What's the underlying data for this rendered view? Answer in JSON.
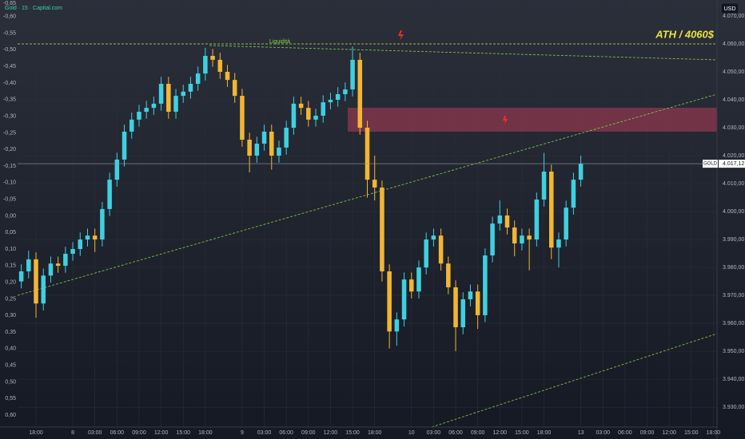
{
  "chart_data": {
    "type": "candlestick",
    "title": "Gold · 15 · Capital.com",
    "currency": "USD",
    "annotations": [
      "ATH / 4060$",
      "Liquidità"
    ],
    "up_color": "#3fd0e0",
    "down_color": "#f2b632",
    "grid": true,
    "last_price": {
      "value": 4017.12,
      "label": "4.017,12"
    },
    "symbol_tag": "GOLD",
    "x": [
      0.5,
      1.5,
      2.5,
      3.5,
      4.5,
      5.5,
      6.5,
      7.5,
      8.5,
      9.5,
      10.5,
      11.5,
      12.5,
      13.5,
      14.5,
      15.5,
      16.5,
      17.5,
      18.5,
      19.5,
      20.5,
      21.5,
      22.5,
      23.5,
      24.5,
      25.5,
      26.5,
      27.5,
      28.5,
      29.5,
      30.5,
      31.5,
      32.5,
      33.5,
      34.5,
      35.5,
      36.5,
      37.5,
      38.5,
      39.5,
      40.5,
      41.5,
      42.5,
      43.5,
      44.5,
      45.5,
      46.5,
      47.5,
      48.5,
      49.5,
      50.5,
      51.5,
      52.5,
      53.5,
      54.5,
      55.5,
      56.5,
      57.5,
      58.5,
      59.5,
      60.5,
      61.5,
      62.5,
      63.5,
      64.5,
      65.5,
      66.5,
      67.5,
      68.5,
      69.5,
      70.5,
      71.5,
      72.5,
      73.5,
      74.5,
      75.5,
      76.5
    ],
    "open": [
      3975.0,
      3978.6,
      3982.9,
      3967.1,
      3977.1,
      3981.4,
      3980.6,
      3984.9,
      3986.6,
      3990.0,
      3991.4,
      3990.0,
      4000.9,
      4011.4,
      4018.6,
      4028.6,
      4032.9,
      4035.7,
      4037.1,
      4038.6,
      4045.7,
      4035.7,
      4041.4,
      4042.9,
      4045.7,
      4049.4,
      4055.7,
      4054.3,
      4050.0,
      4047.1,
      4041.4,
      4025.7,
      4020.0,
      4024.3,
      4028.6,
      4020.0,
      4022.9,
      4030.0,
      4038.6,
      4037.1,
      4032.9,
      4034.3,
      4039.1,
      4040.0,
      4042.0,
      4043.7,
      4054.3,
      4030.0,
      4011.4,
      4008.6,
      3978.6,
      3957.1,
      3961.4,
      3975.7,
      3971.4,
      3980.0,
      3990.0,
      3991.4,
      3981.4,
      3972.9,
      3958.6,
      3968.6,
      3971.4,
      3962.9,
      3984.3,
      3995.7,
      3998.6,
      3994.3,
      3988.6,
      3991.4,
      3990.0,
      4004.3,
      4014.3,
      3987.1,
      3990.0,
      4001.4,
      4011.4
    ],
    "high": [
      3981.1,
      3986.0,
      3985.4,
      3979.6,
      3983.9,
      3983.9,
      3987.4,
      3989.1,
      3992.5,
      3993.9,
      3993.9,
      4003.4,
      4013.9,
      4021.1,
      4031.1,
      4035.4,
      4038.2,
      4039.6,
      4041.1,
      4048.2,
      4048.2,
      4043.9,
      4045.4,
      4048.2,
      4051.9,
      4058.6,
      4058.2,
      4056.8,
      4052.5,
      4049.6,
      4043.9,
      4028.2,
      4026.8,
      4031.1,
      4031.1,
      4025.4,
      4032.5,
      4041.1,
      4041.1,
      4039.6,
      4036.8,
      4041.6,
      4042.5,
      4044.5,
      4046.2,
      4059.0,
      4056.8,
      4032.5,
      4020.0,
      4011.1,
      3981.1,
      3963.9,
      3978.2,
      3978.2,
      3982.5,
      3992.5,
      3993.9,
      3993.9,
      3983.9,
      3975.4,
      3971.1,
      3973.9,
      3973.9,
      3986.8,
      3998.2,
      4004.0,
      4001.1,
      3996.8,
      3993.9,
      3993.9,
      4006.8,
      4021.0,
      4016.8,
      3992.5,
      4003.9,
      4013.9,
      4020.0
    ],
    "low": [
      3972.5,
      3976.1,
      3962.0,
      3964.6,
      3974.6,
      3978.1,
      3978.1,
      3982.4,
      3984.1,
      3987.5,
      3985.5,
      3987.5,
      3998.4,
      4008.9,
      4016.1,
      4026.1,
      4030.4,
      4033.2,
      4034.6,
      4036.1,
      4033.2,
      4033.2,
      4038.9,
      4040.4,
      4043.2,
      4046.9,
      4051.8,
      4047.5,
      4044.6,
      4038.9,
      4023.2,
      4014.0,
      4017.5,
      4021.8,
      4015.0,
      4017.5,
      4020.4,
      4027.5,
      4034.6,
      4030.4,
      4030.4,
      4031.8,
      4036.6,
      4037.5,
      4039.5,
      4041.2,
      4027.5,
      4005.0,
      4004.0,
      3975.0,
      3951.0,
      3952.0,
      3958.9,
      3968.9,
      3968.9,
      3977.5,
      3987.5,
      3978.9,
      3970.4,
      3950.0,
      3956.1,
      3966.1,
      3958.0,
      3960.4,
      3981.8,
      3993.2,
      3991.8,
      3984.0,
      3986.1,
      3979.0,
      3987.5,
      4001.8,
      3983.0,
      3980.0,
      3987.5,
      3998.9,
      4008.9
    ],
    "close": [
      3978.6,
      3982.9,
      3967.1,
      3977.1,
      3981.4,
      3980.6,
      3984.9,
      3986.6,
      3990.0,
      3991.4,
      3990.0,
      4000.9,
      4011.4,
      4018.6,
      4028.6,
      4032.9,
      4035.7,
      4037.1,
      4038.6,
      4045.7,
      4035.7,
      4041.4,
      4042.9,
      4045.7,
      4049.4,
      4055.7,
      4054.3,
      4050.0,
      4047.1,
      4041.4,
      4025.7,
      4020.0,
      4024.3,
      4028.6,
      4020.0,
      4022.9,
      4030.0,
      4038.6,
      4037.1,
      4032.9,
      4034.3,
      4039.1,
      4040.0,
      4042.0,
      4043.7,
      4054.3,
      4030.0,
      4011.4,
      4008.6,
      3978.6,
      3957.1,
      3961.4,
      3975.7,
      3971.4,
      3980.0,
      3990.0,
      3991.4,
      3981.4,
      3972.9,
      3958.6,
      3968.6,
      3971.4,
      3962.9,
      3984.3,
      3995.7,
      3998.6,
      3994.3,
      3988.6,
      3991.4,
      3990.0,
      4004.3,
      4014.3,
      3987.1,
      3990.0,
      4001.4,
      4011.4,
      4017.1
    ],
    "xlim": [
      0,
      95
    ],
    "xticks": [
      {
        "value": 2.5,
        "label": "18:00"
      },
      {
        "value": 7.5,
        "label": "8"
      },
      {
        "value": 10.5,
        "label": "03:00"
      },
      {
        "value": 13.5,
        "label": "06:00"
      },
      {
        "value": 16.5,
        "label": "09:00"
      },
      {
        "value": 19.5,
        "label": "12:00"
      },
      {
        "value": 22.5,
        "label": "15:00"
      },
      {
        "value": 25.5,
        "label": "18:00"
      },
      {
        "value": 30.5,
        "label": "9"
      },
      {
        "value": 33.5,
        "label": "03:00"
      },
      {
        "value": 36.5,
        "label": "06:00"
      },
      {
        "value": 39.5,
        "label": "09:00"
      },
      {
        "value": 42.5,
        "label": "12:00"
      },
      {
        "value": 45.5,
        "label": "15:00"
      },
      {
        "value": 48.5,
        "label": "18:00"
      },
      {
        "value": 53.5,
        "label": "10"
      },
      {
        "value": 56.5,
        "label": "03:00"
      },
      {
        "value": 59.5,
        "label": "06:00"
      },
      {
        "value": 62.5,
        "label": "09:00"
      },
      {
        "value": 65.5,
        "label": "12:00"
      },
      {
        "value": 68.5,
        "label": "15:00"
      },
      {
        "value": 71.5,
        "label": "18:00"
      },
      {
        "value": 76.5,
        "label": "13"
      },
      {
        "value": 79.5,
        "label": "03:00"
      },
      {
        "value": 82.5,
        "label": "06:00"
      },
      {
        "value": 85.5,
        "label": "09:00"
      },
      {
        "value": 88.5,
        "label": "12:00"
      },
      {
        "value": 91.5,
        "label": "15:00"
      },
      {
        "value": 94.5,
        "label": "18:00"
      }
    ],
    "ylim": [
      3922.9,
      4075.7
    ],
    "yticks": [
      {
        "value": 3930,
        "label": "3.930,00"
      },
      {
        "value": 3940,
        "label": "3.940,00"
      },
      {
        "value": 3950,
        "label": "3.950,00"
      },
      {
        "value": 3960,
        "label": "3.960,00"
      },
      {
        "value": 3970,
        "label": "3.970,00"
      },
      {
        "value": 3980,
        "label": "3.980,00"
      },
      {
        "value": 3990,
        "label": "3.990,00"
      },
      {
        "value": 4000,
        "label": "4.000,00"
      },
      {
        "value": 4010,
        "label": "4.010,00"
      },
      {
        "value": 4020,
        "label": "4.020,00"
      },
      {
        "value": 4030,
        "label": "4.030,00"
      },
      {
        "value": 4040,
        "label": "4.040,00"
      },
      {
        "value": 4050,
        "label": "4.050,00"
      },
      {
        "value": 4060,
        "label": "4.060,00"
      },
      {
        "value": 4070,
        "label": "4.070,00"
      }
    ],
    "y2lim": [
      0.636,
      -0.65
    ],
    "y2ticks": [
      {
        "value": -0.65,
        "label": "-0,65"
      },
      {
        "value": -0.6,
        "label": "-0,60"
      },
      {
        "value": -0.55,
        "label": "-0,55"
      },
      {
        "value": -0.5,
        "label": "-0,50"
      },
      {
        "value": -0.45,
        "label": "-0,45"
      },
      {
        "value": -0.4,
        "label": "-0,40"
      },
      {
        "value": -0.35,
        "label": "-0,35"
      },
      {
        "value": -0.3,
        "label": "-0,30"
      },
      {
        "value": -0.25,
        "label": "-0,25"
      },
      {
        "value": -0.2,
        "label": "-0,20"
      },
      {
        "value": -0.15,
        "label": "-0,15"
      },
      {
        "value": -0.1,
        "label": "-0,10"
      },
      {
        "value": -0.05,
        "label": "-0,05"
      },
      {
        "value": 0,
        "label": "0,00"
      },
      {
        "value": 0.05,
        "label": "0,05"
      },
      {
        "value": 0.1,
        "label": "0,10"
      },
      {
        "value": 0.15,
        "label": "0,15"
      },
      {
        "value": 0.2,
        "label": "0,20"
      },
      {
        "value": 0.25,
        "label": "0,25"
      },
      {
        "value": 0.3,
        "label": "0,30"
      },
      {
        "value": 0.35,
        "label": "0,35"
      },
      {
        "value": 0.4,
        "label": "0,40"
      },
      {
        "value": 0.45,
        "label": "0,45"
      },
      {
        "value": 0.5,
        "label": "0,50"
      },
      {
        "value": 0.55,
        "label": "0,55"
      },
      {
        "value": 0.6,
        "label": "0,60"
      }
    ]
  }
}
